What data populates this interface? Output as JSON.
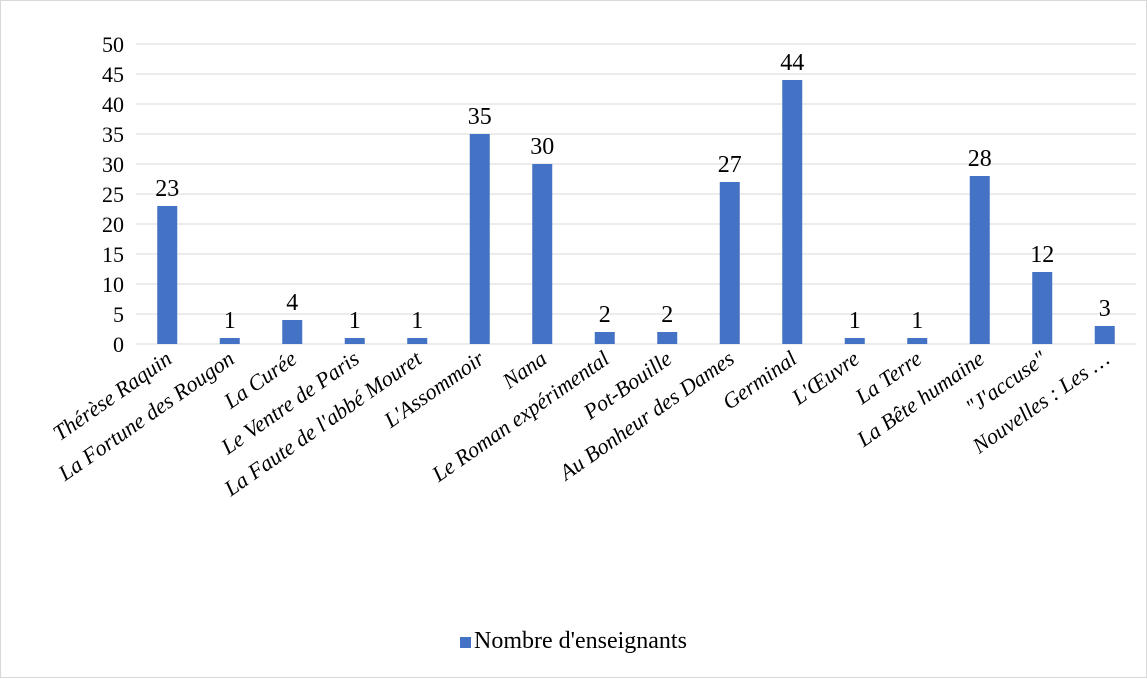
{
  "chart_data": {
    "type": "bar",
    "categories": [
      "Thérèse Raquin",
      "La Fortune des Rougon",
      "La Curée",
      "Le Ventre de Paris",
      "La Faute de l'abbé Mouret",
      "L'Assommoir",
      "Nana",
      "Le Roman expérimental",
      "Pot-Bouille",
      "Au Bonheur des Dames",
      "Germinal",
      "L'Œuvre",
      "La Terre",
      "La Bête humaine",
      "\"J'accuse\"",
      "Nouvelles : Les …"
    ],
    "series": [
      {
        "name": "Nombre d'enseignants",
        "values": [
          23,
          1,
          4,
          1,
          1,
          35,
          30,
          2,
          2,
          27,
          44,
          1,
          1,
          28,
          12,
          3
        ]
      }
    ],
    "yticks": [
      0,
      5,
      10,
      15,
      20,
      25,
      30,
      35,
      40,
      45,
      50
    ],
    "ylim": [
      0,
      50
    ],
    "grid": true,
    "legend_position": "bottom",
    "colors": {
      "bar": "#4472c4"
    }
  }
}
